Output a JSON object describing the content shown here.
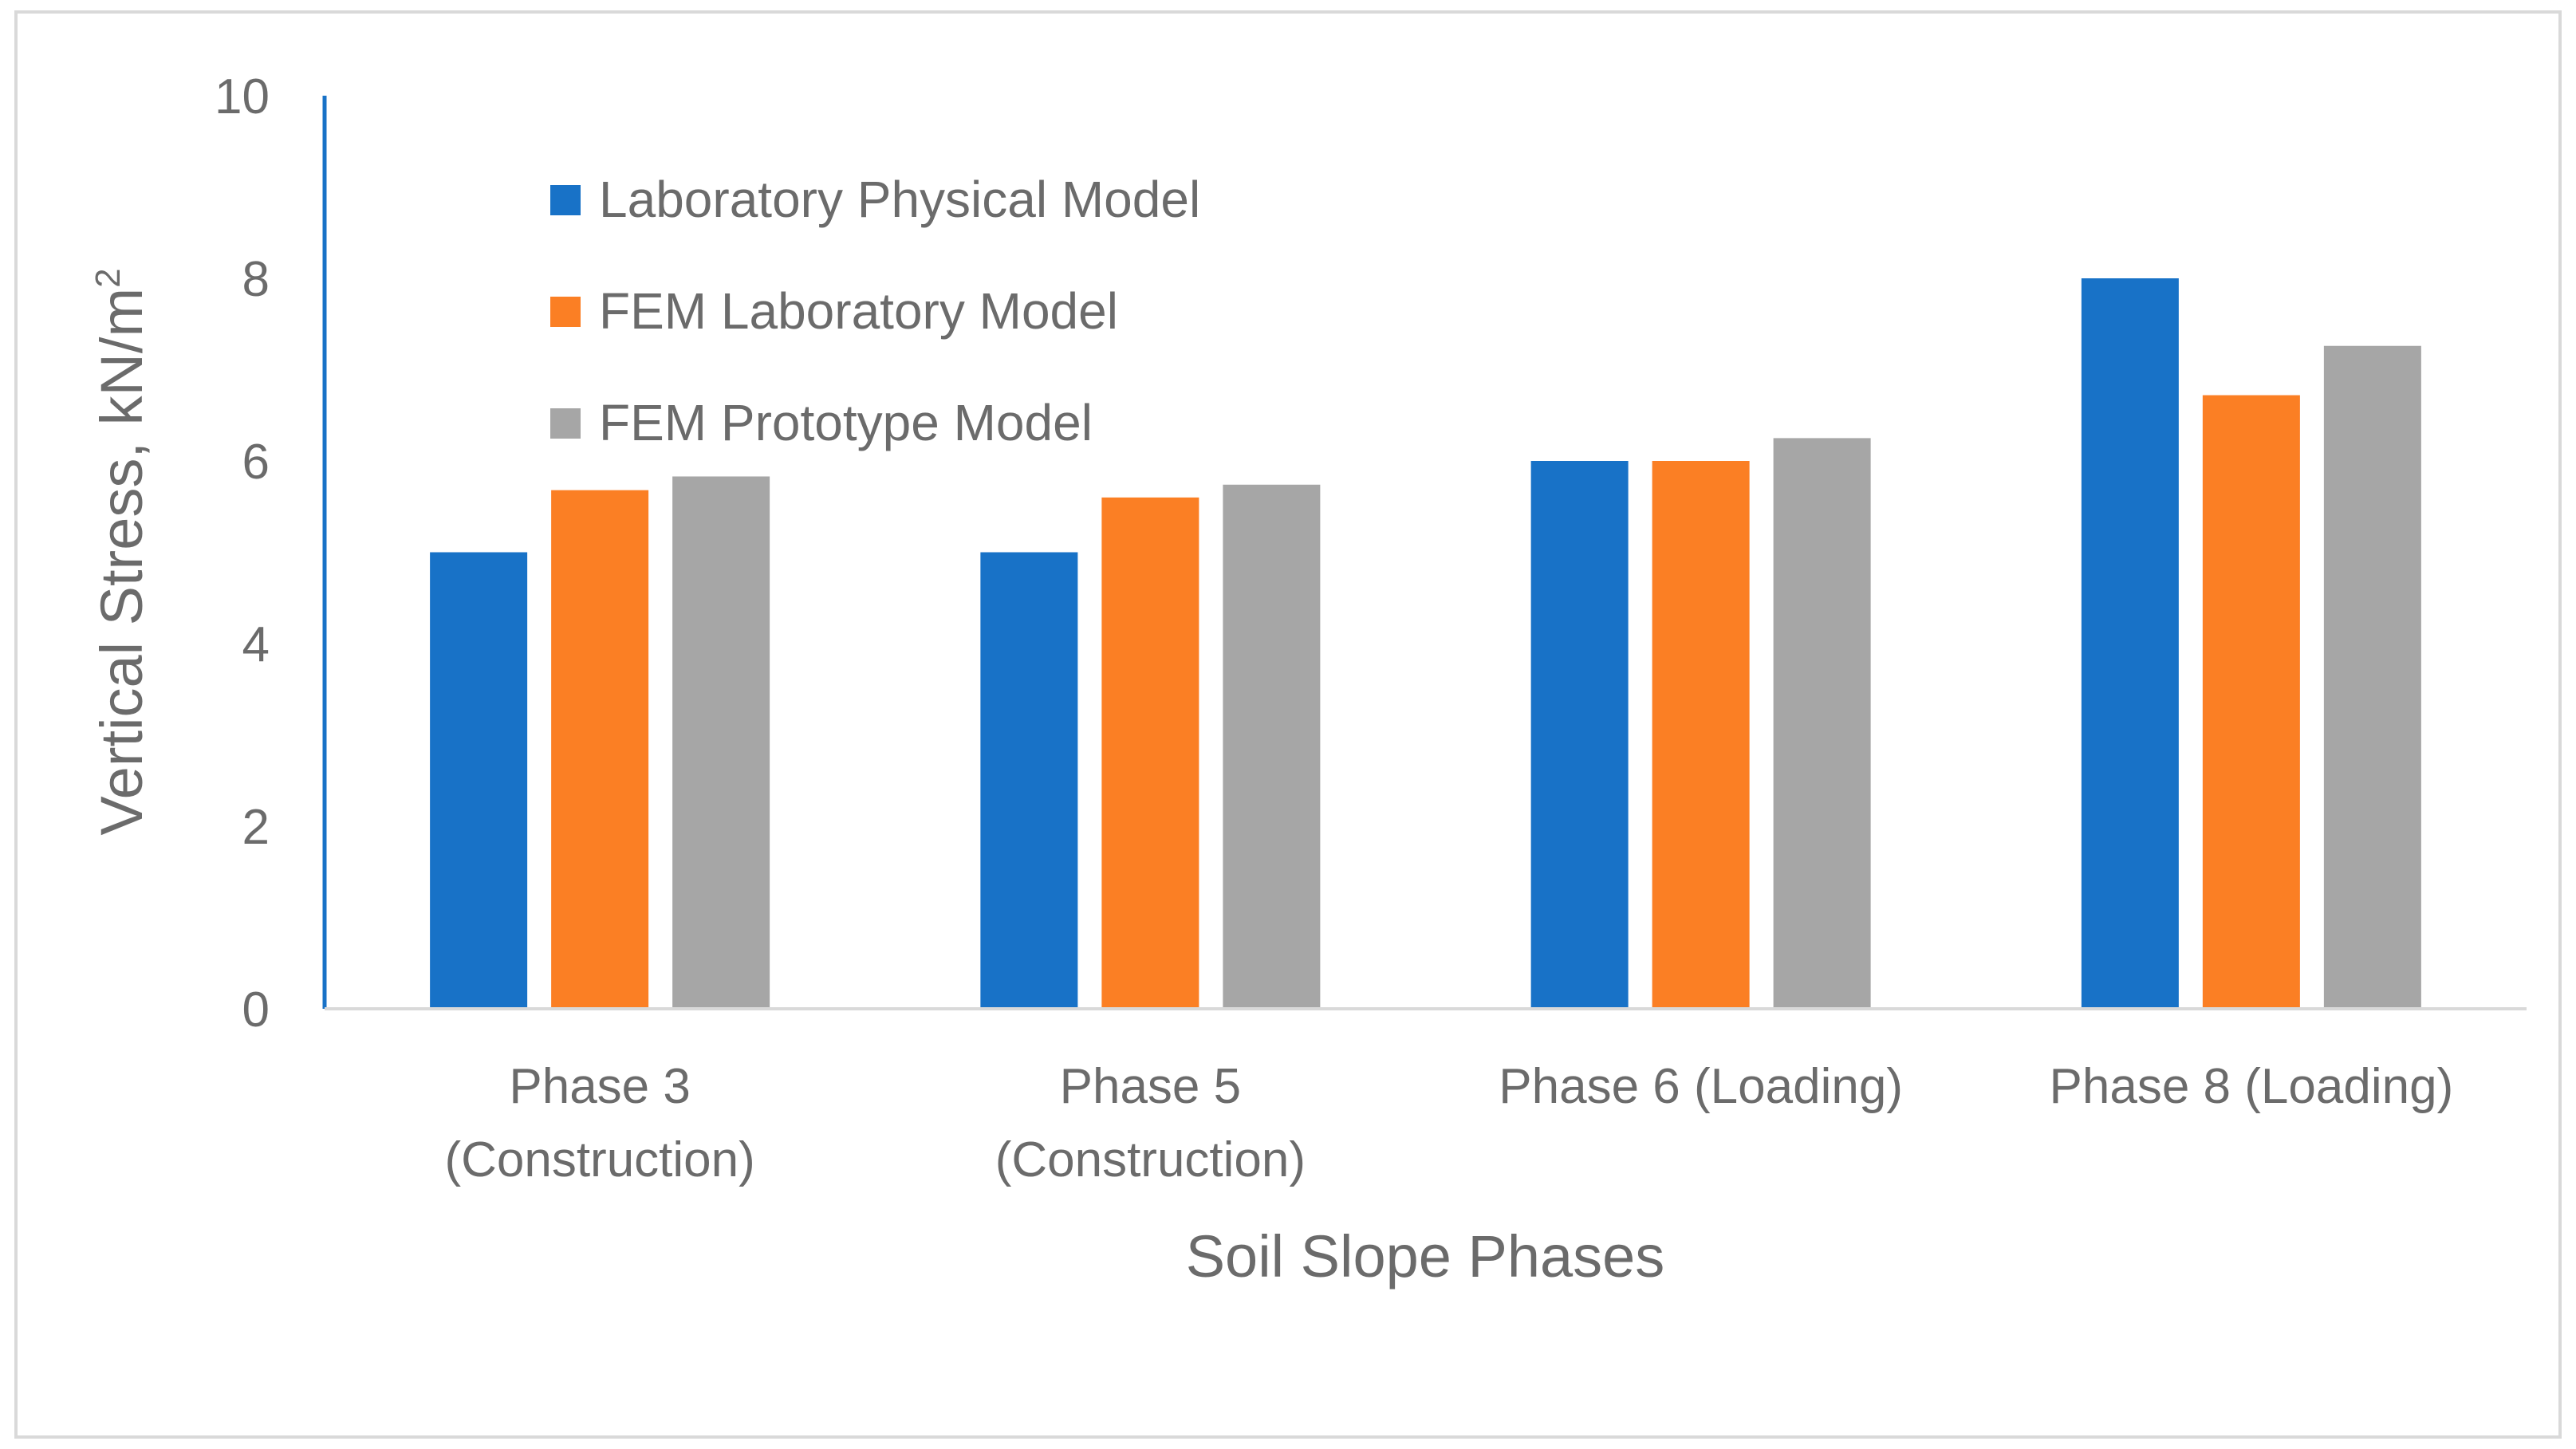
{
  "chart_data": {
    "type": "bar",
    "categories": [
      [
        "Phase 3",
        "(Construction)"
      ],
      [
        "Phase 5",
        "(Construction)"
      ],
      [
        "Phase 6 (Loading)"
      ],
      [
        "Phase 8 (Loading)"
      ]
    ],
    "series": [
      {
        "name": "Laboratory Physical Model",
        "color": "#1872c7",
        "values": [
          5.0,
          5.0,
          6.0,
          8.0
        ]
      },
      {
        "name": "FEM Laboratory Model",
        "color": "#fb7f24",
        "values": [
          5.68,
          5.6,
          6.0,
          6.72
        ]
      },
      {
        "name": "FEM Prototype Model",
        "color": "#a6a6a6",
        "values": [
          5.83,
          5.74,
          6.25,
          7.26
        ]
      }
    ],
    "xlabel": "Soil Slope Phases",
    "ylabel": {
      "text": "Vertical  Stress, kN/m",
      "superscript": "2"
    },
    "ylim": [
      0,
      10
    ],
    "yticks": [
      "0",
      "2",
      "4",
      "6",
      "8",
      "10"
    ],
    "grid": false,
    "legend_position": "top-left"
  }
}
